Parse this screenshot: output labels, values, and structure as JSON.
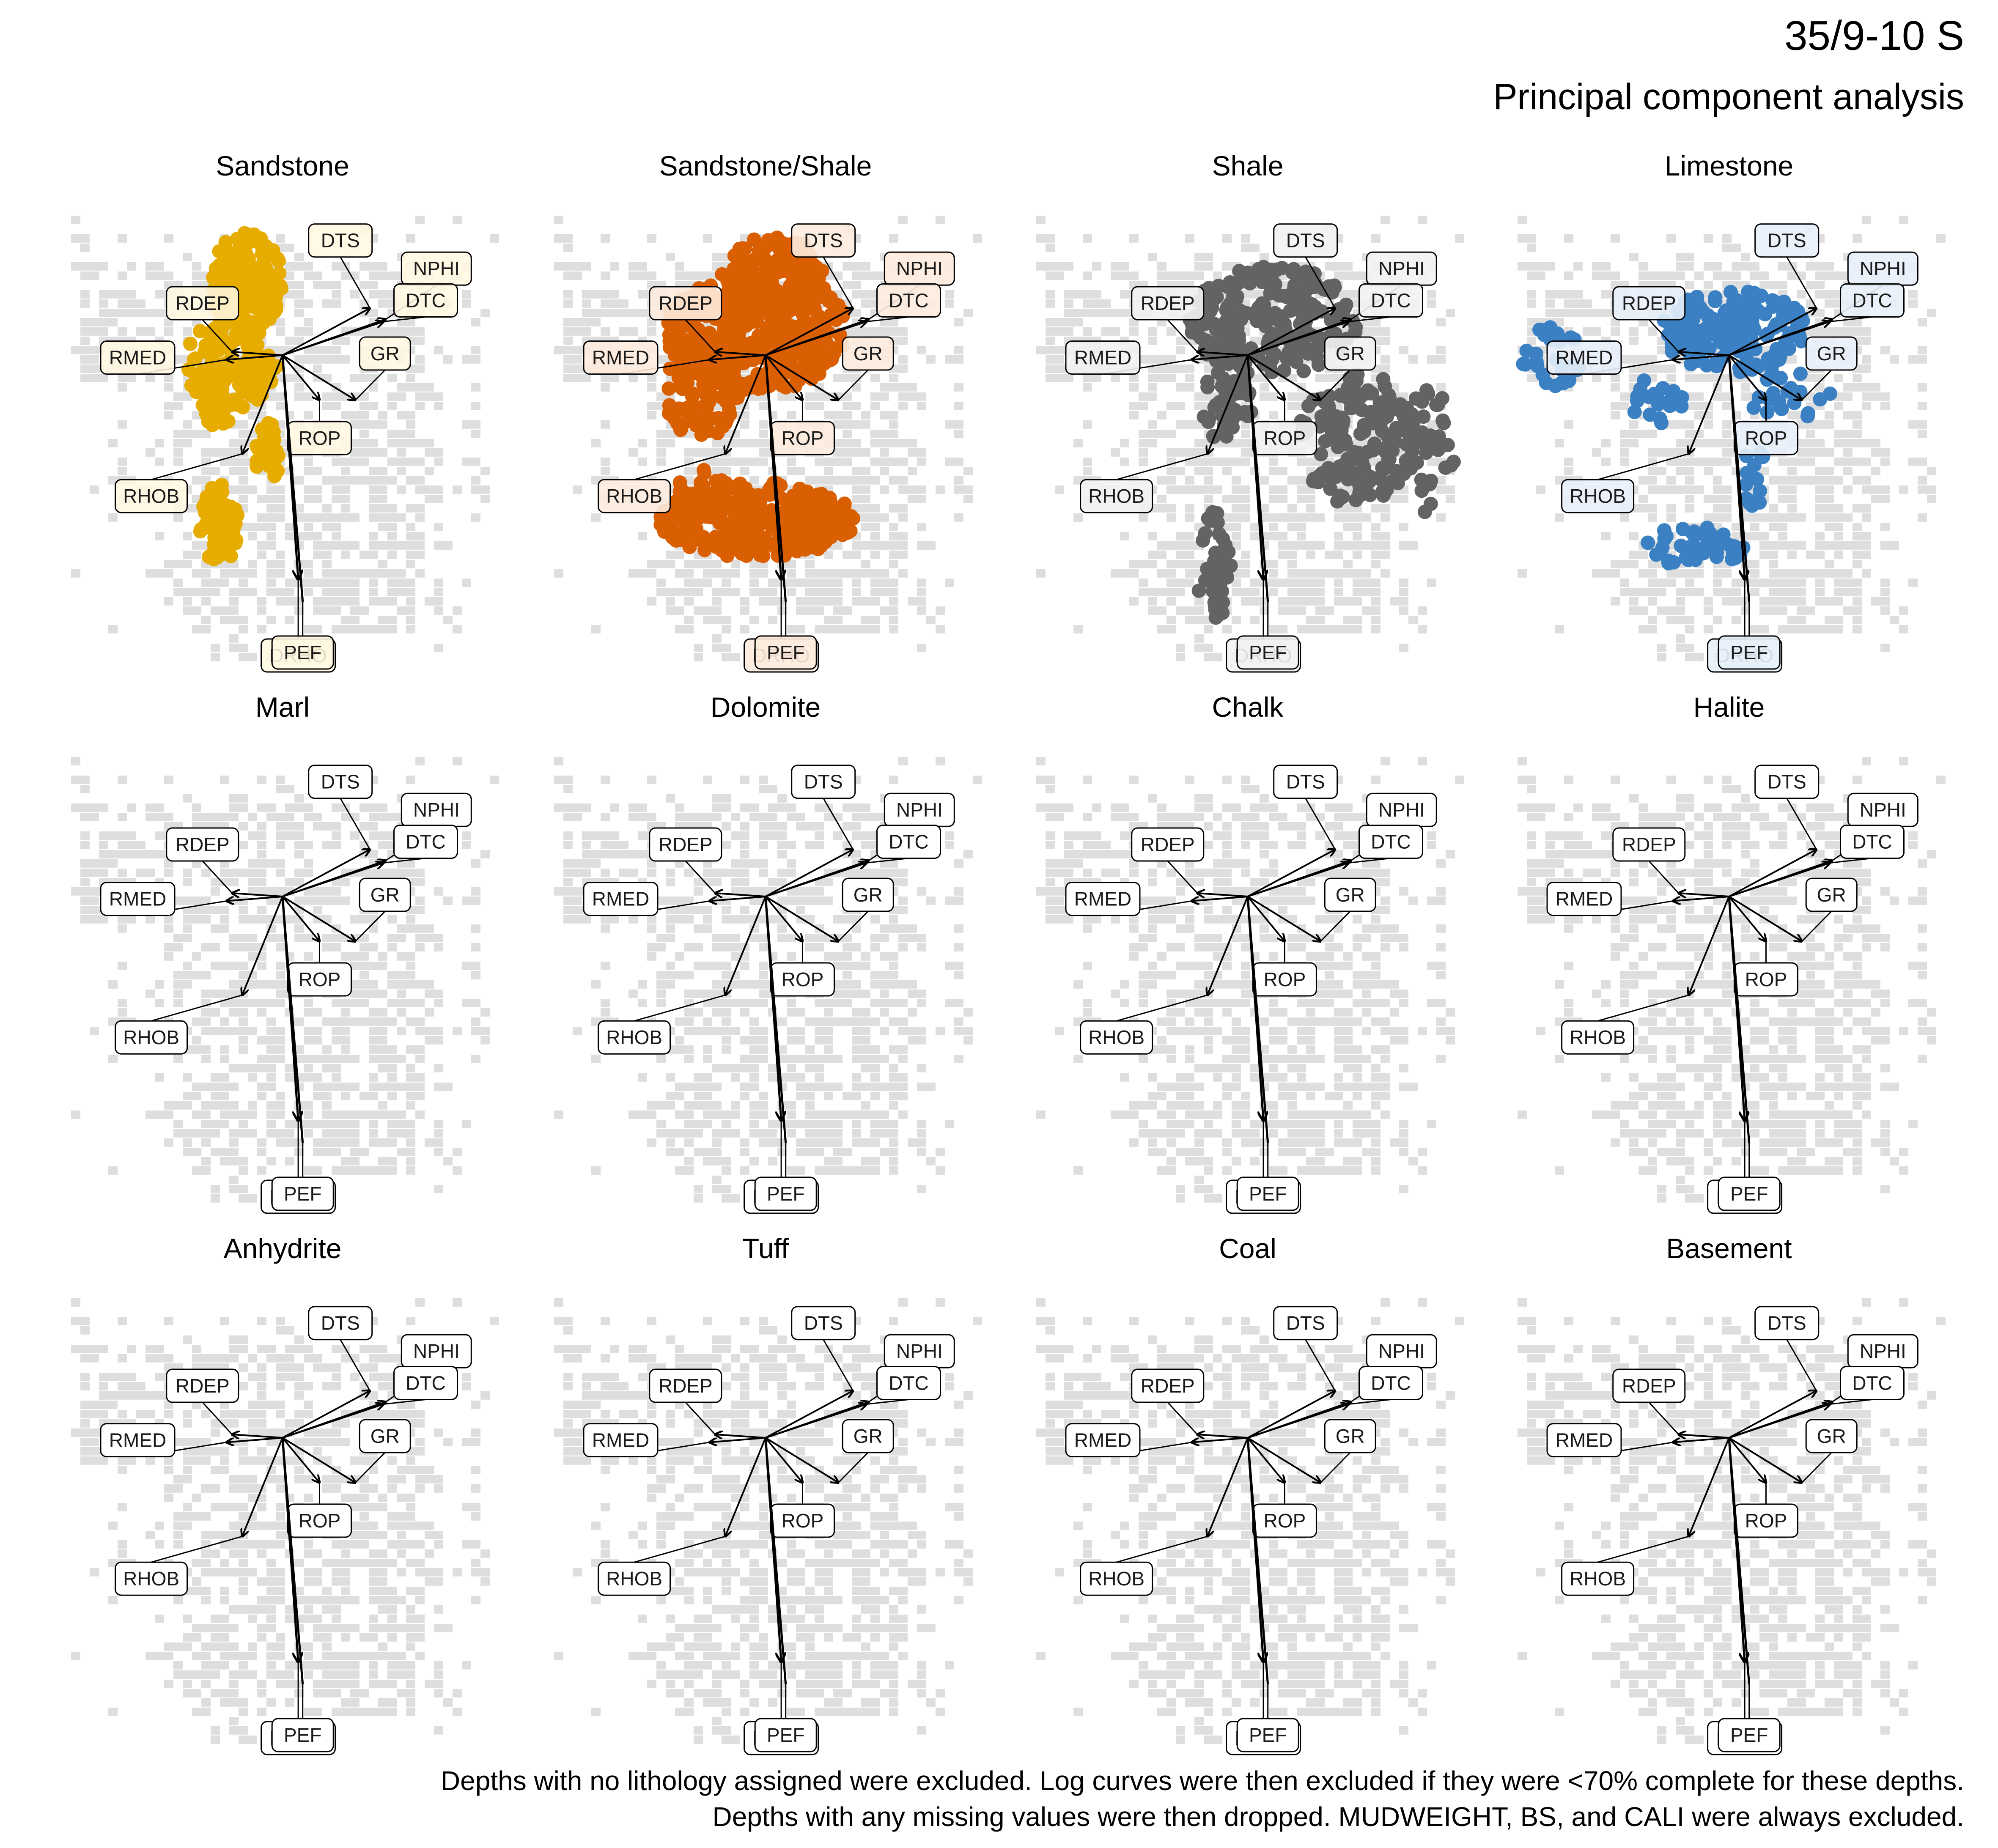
{
  "title": "35/9-10 S",
  "subtitle": "Principal component analysis",
  "caption_lines": [
    "Depths with no lithology assigned were excluded. Log curves were then excluded if they were <70% complete for these depths.",
    "Depths with any missing values were then dropped. MUDWEIGHT, BS, and CALI were always excluded."
  ],
  "colors": {
    "background_density": "#dedede",
    "arrow": "#000000",
    "Sandstone": "#e6ac00",
    "Sandstone/Shale": "#d95f02",
    "Shale": "#636363",
    "Limestone": "#3a80c3"
  },
  "chart_data": {
    "type": "scatter",
    "variant": "pca-biplot-facets",
    "facets": [
      "Sandstone",
      "Sandstone/Shale",
      "Shale",
      "Limestone",
      "Marl",
      "Dolomite",
      "Chalk",
      "Halite",
      "Anhydrite",
      "Tuff",
      "Coal",
      "Basement"
    ],
    "facets_with_points": [
      "Sandstone",
      "Sandstone/Shale",
      "Shale",
      "Limestone"
    ],
    "layout": {
      "rows": 3,
      "cols": 4
    },
    "axes_visible": false,
    "grid": false,
    "loadings": [
      {
        "variable": "DTS",
        "pc1": 0.78,
        "pc2": 0.42
      },
      {
        "variable": "NPHI",
        "pc1": 0.92,
        "pc2": 0.32
      },
      {
        "variable": "DTC",
        "pc1": 0.9,
        "pc2": 0.3
      },
      {
        "variable": "RDEP",
        "pc1": -0.45,
        "pc2": 0.03
      },
      {
        "variable": "RMED",
        "pc1": -0.5,
        "pc2": -0.04
      },
      {
        "variable": "GR",
        "pc1": 0.65,
        "pc2": -0.4
      },
      {
        "variable": "RHOB",
        "pc1": -0.36,
        "pc2": -0.88
      },
      {
        "variable": "ROP",
        "pc1": 0.33,
        "pc2": -0.4
      },
      {
        "variable": "DRHO",
        "pc1": 0.14,
        "pc2": -2.0
      },
      {
        "variable": "PEF",
        "pc1": 0.18,
        "pc2": -2.2
      }
    ]
  }
}
